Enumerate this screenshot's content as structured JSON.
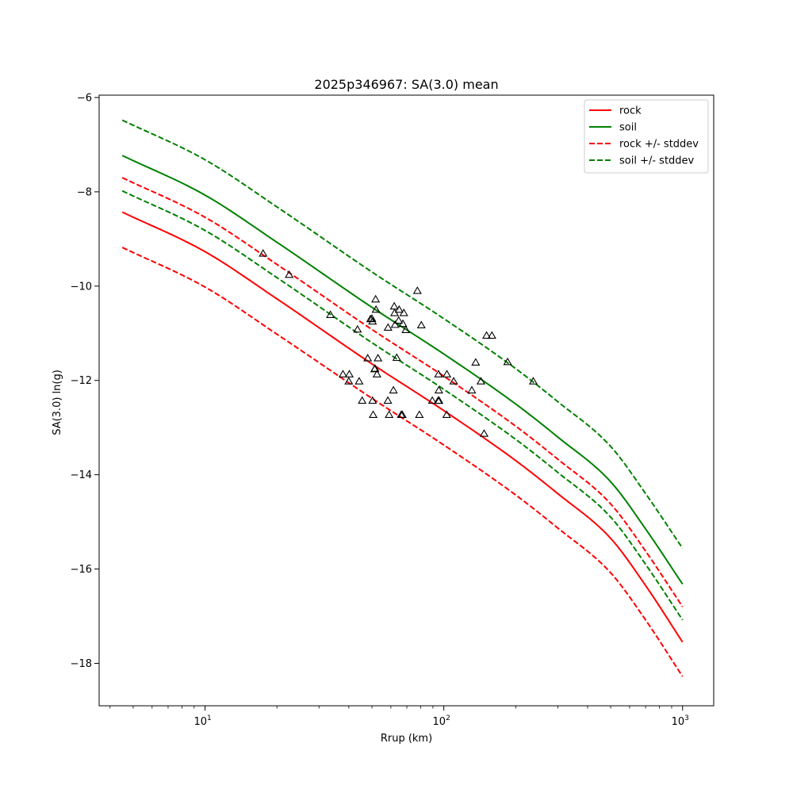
{
  "chart_data": {
    "type": "line",
    "title": "2025p346967: SA(3.0) mean",
    "xlabel": "Rrup (km)",
    "ylabel": "SA(3.0) ln(g)",
    "xscale": "log",
    "xlim": [
      3.6,
      1350
    ],
    "ylim": [
      -18.9,
      -5.95
    ],
    "grid": false,
    "legend_position": "top-right",
    "x_ticks": [
      {
        "value": 10,
        "base": "10",
        "exp": "1"
      },
      {
        "value": 100,
        "base": "10",
        "exp": "2"
      },
      {
        "value": 1000,
        "base": "10",
        "exp": "3"
      }
    ],
    "y_ticks": [
      {
        "value": -18,
        "label": "−18"
      },
      {
        "value": -16,
        "label": "−16"
      },
      {
        "value": -14,
        "label": "−14"
      },
      {
        "value": -12,
        "label": "−12"
      },
      {
        "value": -10,
        "label": "−10"
      },
      {
        "value": -8,
        "label": "−8"
      },
      {
        "value": -6,
        "label": "−6"
      }
    ],
    "x": [
      4.5,
      10,
      20,
      50,
      100,
      200,
      300,
      500,
      700,
      1000
    ],
    "series": [
      {
        "name": "rock",
        "style": "solid",
        "color": "#ff0000",
        "values": [
          -8.43,
          -9.27,
          -10.27,
          -11.65,
          -12.64,
          -13.7,
          -14.4,
          -15.35,
          -16.35,
          -17.55
        ]
      },
      {
        "name": "soil",
        "style": "solid",
        "color": "#008000",
        "values": [
          -7.23,
          -8.07,
          -9.07,
          -10.45,
          -11.44,
          -12.5,
          -13.2,
          -14.15,
          -15.15,
          -16.32
        ]
      },
      {
        "name": "rock +/- stddev",
        "style": "dashed",
        "color": "#ff0000",
        "values": [
          -7.7,
          -8.54,
          -9.54,
          -10.92,
          -11.91,
          -12.97,
          -13.67,
          -14.62,
          -15.62,
          -16.8
        ]
      },
      {
        "name": "",
        "style": "dashed",
        "color": "#ff0000",
        "values": [
          -9.18,
          -10.02,
          -11.02,
          -12.38,
          -13.37,
          -14.43,
          -15.13,
          -16.08,
          -17.08,
          -18.28
        ]
      },
      {
        "name": "soil +/- stddev",
        "style": "dashed",
        "color": "#008000",
        "values": [
          -6.48,
          -7.32,
          -8.32,
          -9.7,
          -10.69,
          -11.75,
          -12.45,
          -13.4,
          -14.4,
          -15.56
        ]
      },
      {
        "name": "",
        "style": "dashed",
        "color": "#008000",
        "values": [
          -7.98,
          -8.82,
          -9.82,
          -11.2,
          -12.19,
          -13.25,
          -13.95,
          -14.9,
          -15.9,
          -17.08
        ]
      }
    ],
    "observations": {
      "marker": "triangle-open",
      "color": "#000000",
      "points": [
        [
          17.5,
          -9.31
        ],
        [
          22.5,
          -9.76
        ],
        [
          33.5,
          -10.61
        ],
        [
          37.8,
          -11.87
        ],
        [
          40,
          -12.02
        ],
        [
          40.2,
          -11.87
        ],
        [
          43.5,
          -10.92
        ],
        [
          44.2,
          -12.02
        ],
        [
          45.5,
          -12.43
        ],
        [
          48,
          -11.53
        ],
        [
          49.3,
          -10.7
        ],
        [
          50,
          -10.69
        ],
        [
          50.3,
          -10.75
        ],
        [
          50.3,
          -12.43
        ],
        [
          50.6,
          -12.73
        ],
        [
          51.3,
          -11.76
        ],
        [
          51.5,
          -11.75
        ],
        [
          51.8,
          -10.28
        ],
        [
          52,
          -10.5
        ],
        [
          52.5,
          -11.87
        ],
        [
          53,
          -11.53
        ],
        [
          58.3,
          -12.43
        ],
        [
          58.4,
          -10.88
        ],
        [
          59,
          -12.73
        ],
        [
          61.5,
          -12.21
        ],
        [
          62,
          -10.43
        ],
        [
          62.2,
          -10.57
        ],
        [
          62.5,
          -10.82
        ],
        [
          63.5,
          -11.52
        ],
        [
          64.7,
          -10.73
        ],
        [
          65,
          -10.5
        ],
        [
          66.3,
          -12.73
        ],
        [
          67,
          -12.73
        ],
        [
          67.4,
          -10.8
        ],
        [
          68,
          -10.57
        ],
        [
          69.3,
          -10.93
        ],
        [
          77.5,
          -10.1
        ],
        [
          79,
          -12.73
        ],
        [
          80.5,
          -10.83
        ],
        [
          89.5,
          -12.43
        ],
        [
          94.7,
          -12.43
        ],
        [
          95,
          -11.87
        ],
        [
          95.3,
          -12.21
        ],
        [
          95.5,
          -12.43
        ],
        [
          102.8,
          -12.73
        ],
        [
          103,
          -11.87
        ],
        [
          110,
          -12.02
        ],
        [
          131,
          -12.21
        ],
        [
          136,
          -11.62
        ],
        [
          143,
          -12.02
        ],
        [
          147.5,
          -13.13
        ],
        [
          151,
          -11.05
        ],
        [
          159,
          -11.05
        ],
        [
          185,
          -11.61
        ],
        [
          237,
          -12.02
        ]
      ]
    }
  }
}
